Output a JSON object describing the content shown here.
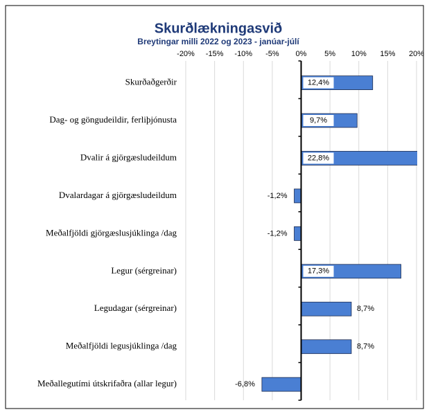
{
  "chart_data": {
    "type": "barh",
    "title": "Skurðlækningasvið",
    "subtitle": "Breytingar milli 2022 og 2023 - janúar-júlí",
    "categories": [
      "Skurðaðgerðir",
      "Dag- og göngudeildir, ferliþjónusta",
      "Dvalir á gjörgæsludeildum",
      "Dvalardagar á gjörgæsludeildum",
      "Meðalfjöldi gjörgæslusjúklinga /dag",
      "Legur (sérgreinar)",
      "Legudagar (sérgreinar)",
      "Meðalfjöldi legusjúklinga /dag",
      "Meðallegutími útskrifaðra (allar legur)"
    ],
    "values": [
      12.4,
      9.7,
      22.8,
      -1.2,
      -1.2,
      17.3,
      8.7,
      8.7,
      -6.8
    ],
    "value_labels": [
      "12,4%",
      "9,7%",
      "22,8%",
      "-1,2%",
      "-1,2%",
      "17,3%",
      "8,7%",
      "8,7%",
      "-6,8%"
    ],
    "color": "#4a7fd3",
    "xlim": [
      -20,
      20
    ],
    "xticks": [
      {
        "value": -20,
        "label": "-20%"
      },
      {
        "value": -15,
        "label": "-15%"
      },
      {
        "value": -10,
        "label": "-10%"
      },
      {
        "value": -5,
        "label": "-5%"
      },
      {
        "value": 0,
        "label": "0%"
      },
      {
        "value": 5,
        "label": "5%"
      },
      {
        "value": 10,
        "label": "10%"
      },
      {
        "value": 15,
        "label": "15%"
      },
      {
        "value": 20,
        "label": "20%"
      }
    ],
    "grid": true
  }
}
